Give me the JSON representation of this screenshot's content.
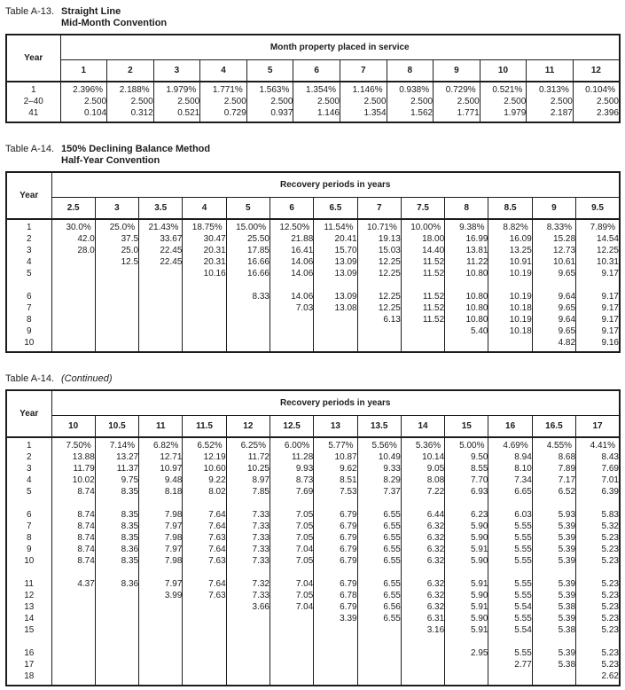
{
  "tables": [
    {
      "title": {
        "prefix": "Table A-13.",
        "line1": "Straight Line",
        "line2": "Mid-Month Convention",
        "italic": ""
      },
      "corner_label": "Year",
      "group_header": "Month property placed in service",
      "columns": [
        "1",
        "2",
        "3",
        "4",
        "5",
        "6",
        "7",
        "8",
        "9",
        "10",
        "11",
        "12"
      ],
      "row_groups": [
        [
          {
            "year": "1",
            "values": [
              "2.396%",
              "2.188%",
              "1.979%",
              "1.771%",
              "1.563%",
              "1.354%",
              "1.146%",
              "0.938%",
              "0.729%",
              "0.521%",
              "0.313%",
              "0.104%"
            ]
          },
          {
            "year": "2–40",
            "values": [
              "2.500",
              "2.500",
              "2.500",
              "2.500",
              "2.500",
              "2.500",
              "2.500",
              "2.500",
              "2.500",
              "2.500",
              "2.500",
              "2.500"
            ]
          },
          {
            "year": "41",
            "values": [
              "0.104",
              "0.312",
              "0.521",
              "0.729",
              "0.937",
              "1.146",
              "1.354",
              "1.562",
              "1.771",
              "1.979",
              "2.187",
              "2.396"
            ]
          }
        ]
      ]
    },
    {
      "title": {
        "prefix": "Table A-14.",
        "line1": "150% Declining Balance Method",
        "line2": "Half-Year Convention",
        "italic": ""
      },
      "corner_label": "Year",
      "group_header": "Recovery periods in years",
      "columns": [
        "2.5",
        "3",
        "3.5",
        "4",
        "5",
        "6",
        "6.5",
        "7",
        "7.5",
        "8",
        "8.5",
        "9",
        "9.5"
      ],
      "row_groups": [
        [
          {
            "year": "1",
            "values": [
              "30.0%",
              "25.0%",
              "21.43%",
              "18.75%",
              "15.00%",
              "12.50%",
              "11.54%",
              "10.71%",
              "10.00%",
              "9.38%",
              "8.82%",
              "8.33%",
              "7.89%"
            ]
          },
          {
            "year": "2",
            "values": [
              "42.0",
              "37.5",
              "33.67",
              "30.47",
              "25.50",
              "21.88",
              "20.41",
              "19.13",
              "18.00",
              "16.99",
              "16.09",
              "15.28",
              "14.54"
            ]
          },
          {
            "year": "3",
            "values": [
              "28.0",
              "25.0",
              "22.45",
              "20.31",
              "17.85",
              "16.41",
              "15.70",
              "15.03",
              "14.40",
              "13.81",
              "13.25",
              "12.73",
              "12.25"
            ]
          },
          {
            "year": "4",
            "values": [
              "",
              "12.5",
              "22.45",
              "20.31",
              "16.66",
              "14.06",
              "13.09",
              "12.25",
              "11.52",
              "11.22",
              "10.91",
              "10.61",
              "10.31"
            ]
          },
          {
            "year": "5",
            "values": [
              "",
              "",
              "",
              "10.16",
              "16.66",
              "14.06",
              "13.09",
              "12.25",
              "11.52",
              "10.80",
              "10.19",
              "9.65",
              "9.17"
            ]
          }
        ],
        [
          {
            "year": "6",
            "values": [
              "",
              "",
              "",
              "",
              "8.33",
              "14.06",
              "13.09",
              "12.25",
              "11.52",
              "10.80",
              "10.19",
              "9.64",
              "9.17"
            ]
          },
          {
            "year": "7",
            "values": [
              "",
              "",
              "",
              "",
              "",
              "7.03",
              "13.08",
              "12.25",
              "11.52",
              "10.80",
              "10.18",
              "9.65",
              "9.17"
            ]
          },
          {
            "year": "8",
            "values": [
              "",
              "",
              "",
              "",
              "",
              "",
              "",
              "6.13",
              "11.52",
              "10.80",
              "10.19",
              "9.64",
              "9.17"
            ]
          },
          {
            "year": "9",
            "values": [
              "",
              "",
              "",
              "",
              "",
              "",
              "",
              "",
              "",
              "5.40",
              "10.18",
              "9.65",
              "9.17"
            ]
          },
          {
            "year": "10",
            "values": [
              "",
              "",
              "",
              "",
              "",
              "",
              "",
              "",
              "",
              "",
              "",
              "4.82",
              "9.16"
            ]
          }
        ]
      ]
    },
    {
      "title": {
        "prefix": "Table A-14.",
        "line1": "",
        "line2": "",
        "italic": "(Continued)"
      },
      "corner_label": "Year",
      "group_header": "Recovery periods in years",
      "columns": [
        "10",
        "10.5",
        "11",
        "11.5",
        "12",
        "12.5",
        "13",
        "13.5",
        "14",
        "15",
        "16",
        "16.5",
        "17"
      ],
      "row_groups": [
        [
          {
            "year": "1",
            "values": [
              "7.50%",
              "7.14%",
              "6.82%",
              "6.52%",
              "6.25%",
              "6.00%",
              "5.77%",
              "5.56%",
              "5.36%",
              "5.00%",
              "4.69%",
              "4.55%",
              "4.41%"
            ]
          },
          {
            "year": "2",
            "values": [
              "13.88",
              "13.27",
              "12.71",
              "12.19",
              "11.72",
              "11.28",
              "10.87",
              "10.49",
              "10.14",
              "9.50",
              "8.94",
              "8.68",
              "8.43"
            ]
          },
          {
            "year": "3",
            "values": [
              "11.79",
              "11.37",
              "10.97",
              "10.60",
              "10.25",
              "9.93",
              "9.62",
              "9.33",
              "9.05",
              "8.55",
              "8.10",
              "7.89",
              "7.69"
            ]
          },
          {
            "year": "4",
            "values": [
              "10.02",
              "9.75",
              "9.48",
              "9.22",
              "8.97",
              "8.73",
              "8.51",
              "8.29",
              "8.08",
              "7.70",
              "7.34",
              "7.17",
              "7.01"
            ]
          },
          {
            "year": "5",
            "values": [
              "8.74",
              "8.35",
              "8.18",
              "8.02",
              "7.85",
              "7.69",
              "7.53",
              "7.37",
              "7.22",
              "6.93",
              "6.65",
              "6.52",
              "6.39"
            ]
          }
        ],
        [
          {
            "year": "6",
            "values": [
              "8.74",
              "8.35",
              "7.98",
              "7.64",
              "7.33",
              "7.05",
              "6.79",
              "6.55",
              "6.44",
              "6.23",
              "6.03",
              "5.93",
              "5.83"
            ]
          },
          {
            "year": "7",
            "values": [
              "8.74",
              "8.35",
              "7.97",
              "7.64",
              "7.33",
              "7.05",
              "6.79",
              "6.55",
              "6.32",
              "5.90",
              "5.55",
              "5.39",
              "5.32"
            ]
          },
          {
            "year": "8",
            "values": [
              "8.74",
              "8.35",
              "7.98",
              "7.63",
              "7.33",
              "7.05",
              "6.79",
              "6.55",
              "6.32",
              "5.90",
              "5.55",
              "5.39",
              "5.23"
            ]
          },
          {
            "year": "9",
            "values": [
              "8.74",
              "8.36",
              "7.97",
              "7.64",
              "7.33",
              "7.04",
              "6.79",
              "6.55",
              "6.32",
              "5.91",
              "5.55",
              "5.39",
              "5.23"
            ]
          },
          {
            "year": "10",
            "values": [
              "8.74",
              "8.35",
              "7.98",
              "7.63",
              "7.33",
              "7.05",
              "6.79",
              "6.55",
              "6.32",
              "5.90",
              "5.55",
              "5.39",
              "5.23"
            ]
          }
        ],
        [
          {
            "year": "11",
            "values": [
              "4.37",
              "8.36",
              "7.97",
              "7.64",
              "7.32",
              "7.04",
              "6.79",
              "6.55",
              "6.32",
              "5.91",
              "5.55",
              "5.39",
              "5.23"
            ]
          },
          {
            "year": "12",
            "values": [
              "",
              "",
              "3.99",
              "7.63",
              "7.33",
              "7.05",
              "6.78",
              "6.55",
              "6.32",
              "5.90",
              "5.55",
              "5.39",
              "5.23"
            ]
          },
          {
            "year": "13",
            "values": [
              "",
              "",
              "",
              "",
              "3.66",
              "7.04",
              "6.79",
              "6.56",
              "6.32",
              "5.91",
              "5.54",
              "5.38",
              "5.23"
            ]
          },
          {
            "year": "14",
            "values": [
              "",
              "",
              "",
              "",
              "",
              "",
              "3.39",
              "6.55",
              "6.31",
              "5.90",
              "5.55",
              "5.39",
              "5.23"
            ]
          },
          {
            "year": "15",
            "values": [
              "",
              "",
              "",
              "",
              "",
              "",
              "",
              "",
              "3.16",
              "5.91",
              "5.54",
              "5.38",
              "5.23"
            ]
          }
        ],
        [
          {
            "year": "16",
            "values": [
              "",
              "",
              "",
              "",
              "",
              "",
              "",
              "",
              "",
              "2.95",
              "5.55",
              "5.39",
              "5.23"
            ]
          },
          {
            "year": "17",
            "values": [
              "",
              "",
              "",
              "",
              "",
              "",
              "",
              "",
              "",
              "",
              "2.77",
              "5.38",
              "5.23"
            ]
          },
          {
            "year": "18",
            "values": [
              "",
              "",
              "",
              "",
              "",
              "",
              "",
              "",
              "",
              "",
              "",
              "",
              "2.62"
            ]
          }
        ]
      ]
    }
  ]
}
